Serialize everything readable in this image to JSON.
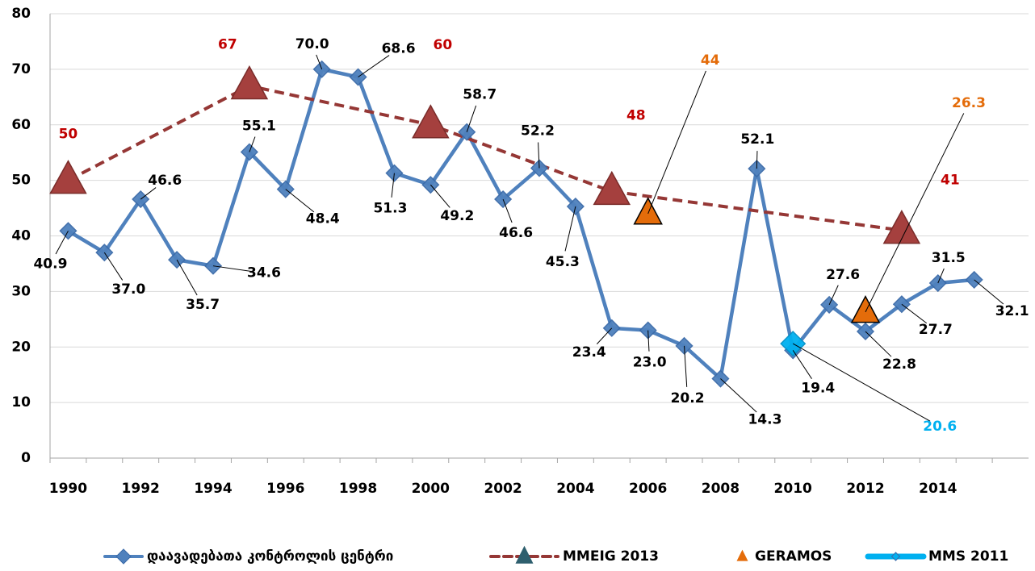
{
  "chart_data": {
    "type": "line",
    "xlim": [
      1989.5,
      2016.5
    ],
    "xticks": [
      1990,
      1992,
      1994,
      1996,
      1998,
      2000,
      2002,
      2004,
      2006,
      2008,
      2010,
      2012,
      2014
    ],
    "ylim": [
      0,
      80
    ],
    "yticks": [
      0,
      10,
      20,
      30,
      40,
      50,
      60,
      70,
      80
    ],
    "grid": true,
    "legend": "bottom",
    "series": [
      {
        "name": "დაავადებათა კონტროლის ცენტრი",
        "color": "#4f81bd",
        "linestyle": "solid",
        "marker": "diamond",
        "label_color": "#000000",
        "x": [
          1990,
          1991,
          1992,
          1993,
          1994,
          1995,
          1996,
          1997,
          1998,
          1999,
          2000,
          2001,
          2002,
          2003,
          2004,
          2005,
          2006,
          2007,
          2008,
          2009,
          2010,
          2011,
          2012,
          2013,
          2014,
          2015
        ],
        "values": [
          40.9,
          37.0,
          46.6,
          35.7,
          34.6,
          55.1,
          48.4,
          70.0,
          68.6,
          51.3,
          49.2,
          58.7,
          46.6,
          52.2,
          45.3,
          23.4,
          23.0,
          20.2,
          14.3,
          52.1,
          19.4,
          27.6,
          22.8,
          27.7,
          31.5,
          32.1
        ],
        "value_labels": [
          "40.9",
          "37.0",
          "46.6",
          "35.7",
          "34.6",
          "55.1",
          "48.4",
          "70.0",
          "68.6",
          "51.3",
          "49.2",
          "58.7",
          "46.6",
          "52.2",
          "45.3",
          "23.4",
          "23.0",
          "20.2",
          "14.3",
          "52.1",
          "19.4",
          "27.6",
          "22.8",
          "27.7",
          "31.5",
          "32.1"
        ]
      },
      {
        "name": "MMEIG 2013",
        "color": "#953735",
        "linestyle": "dashed",
        "marker": "triangle",
        "label_color": "#c00000",
        "x": [
          1990,
          1995,
          2000,
          2005,
          2013
        ],
        "values": [
          50,
          67,
          60,
          48,
          41
        ]
      },
      {
        "name": "GERAMOS",
        "color": "#e46c0a",
        "linestyle": "none",
        "marker": "triangle",
        "label_color": "#e46c0a",
        "x": [
          2006,
          2012
        ],
        "values": [
          44,
          26.3
        ]
      },
      {
        "name": "MMS 2011",
        "color": "#00b0f0",
        "linestyle": "solid",
        "marker": "diamond",
        "label_color": "#00b0f0",
        "x": [
          2010
        ],
        "values": [
          20.6
        ]
      }
    ]
  }
}
